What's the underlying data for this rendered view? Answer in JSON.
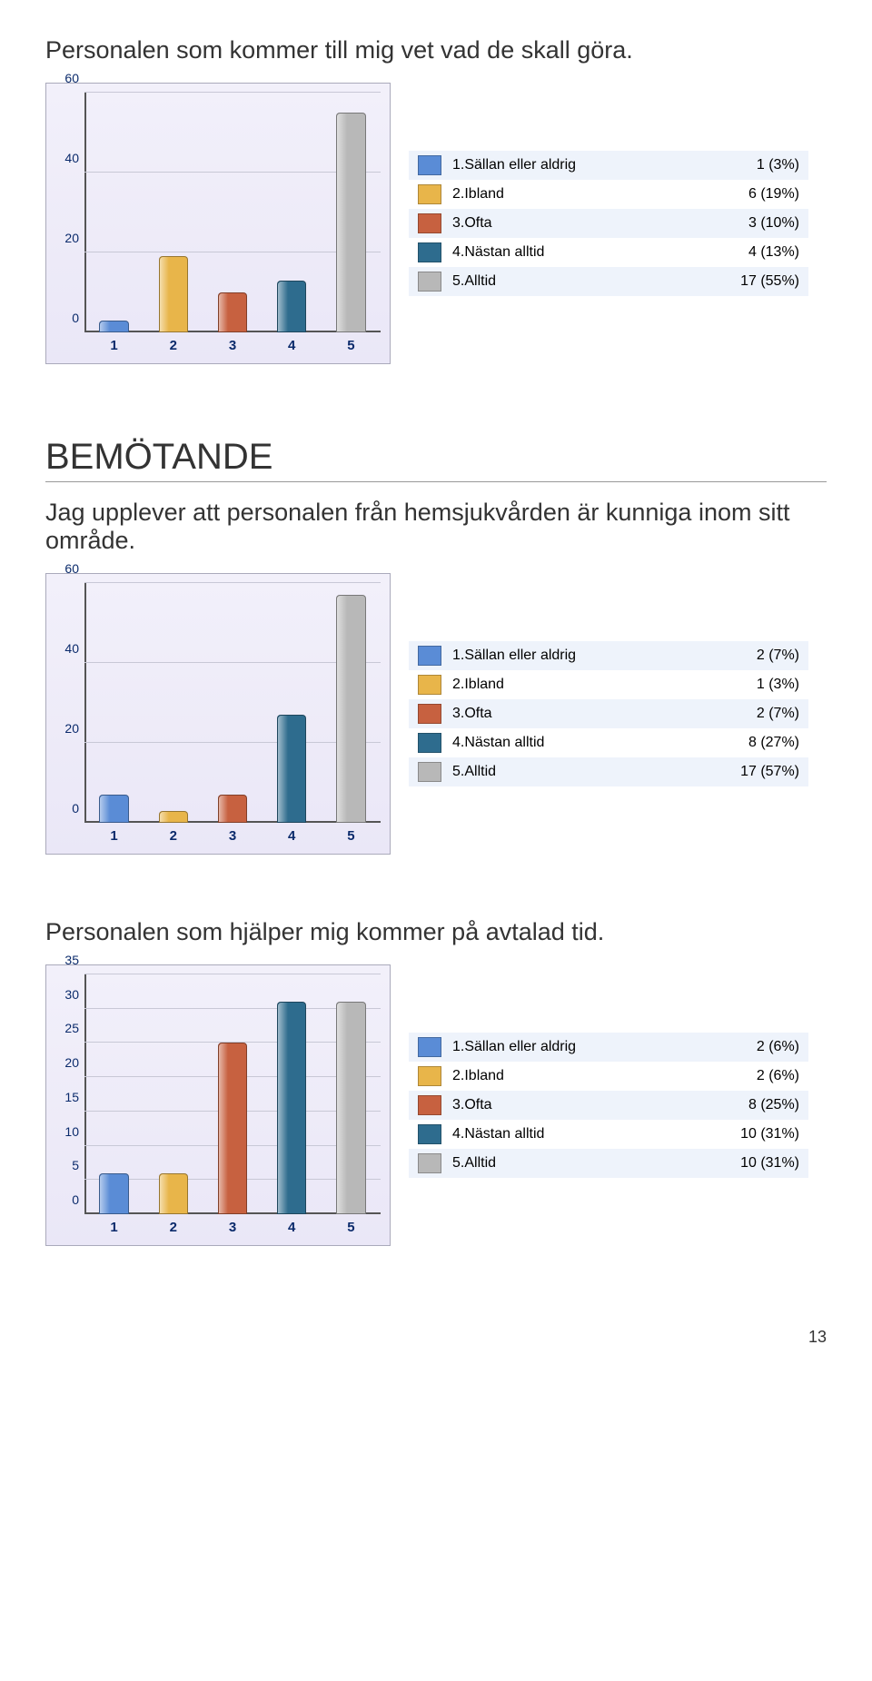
{
  "page_number": "13",
  "categories": [
    "1",
    "2",
    "3",
    "4",
    "5"
  ],
  "category_labels": [
    "1.Sällan eller aldrig",
    "2.Ibland",
    "3.Ofta",
    "4.Nästan alltid",
    "5.Alltid"
  ],
  "colors": [
    "#5a8cd6",
    "#e8b54a",
    "#c76140",
    "#2e6c8e",
    "#b8b8b8"
  ],
  "chart_bg_top": "#f2f0fa",
  "chart_bg_bottom": "#eae7f7",
  "grid_color": "#c8c8d6",
  "axis_color": "#555555",
  "tick_color": "#0a2a6b",
  "legend_alt_bg": "#eef3fb",
  "q1": {
    "title": "Personalen som kommer till mig vet vad de skall göra.",
    "ymax": 60,
    "ytick_step": 20,
    "percentages": [
      3,
      19,
      10,
      13,
      55
    ],
    "value_labels": [
      "1 (3%)",
      "6 (19%)",
      "3 (10%)",
      "4 (13%)",
      "17 (55%)"
    ]
  },
  "section": {
    "heading": "BEMÖTANDE",
    "sub": "Jag upplever att personalen från hemsjukvården är kunniga inom sitt område."
  },
  "q2": {
    "ymax": 60,
    "ytick_step": 20,
    "percentages": [
      7,
      3,
      7,
      27,
      57
    ],
    "value_labels": [
      "2 (7%)",
      "1 (3%)",
      "2 (7%)",
      "8 (27%)",
      "17 (57%)"
    ]
  },
  "q3": {
    "title": "Personalen som hjälper mig kommer på avtalad tid.",
    "ymax": 35,
    "ytick_step": 5,
    "percentages": [
      6,
      6,
      25,
      31,
      31
    ],
    "value_labels": [
      "2 (6%)",
      "2 (6%)",
      "8 (25%)",
      "10 (31%)",
      "10 (31%)"
    ]
  }
}
